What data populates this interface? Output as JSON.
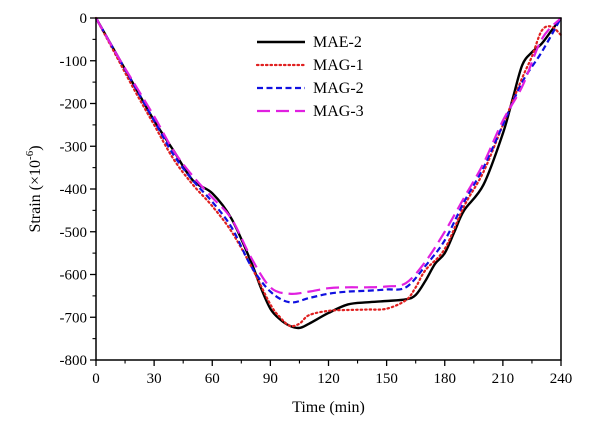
{
  "chart_data": {
    "type": "line",
    "xlabel": "Time (min)",
    "ylabel": {
      "prefix": "Strain (×10",
      "exp": "-6",
      "suffix": ")"
    },
    "xlim": [
      0,
      240
    ],
    "ylim": [
      -800,
      0
    ],
    "xticks": [
      0,
      30,
      60,
      90,
      120,
      150,
      180,
      210,
      240
    ],
    "yticks": [
      0,
      -100,
      -200,
      -300,
      -400,
      -500,
      -600,
      -700,
      -800
    ],
    "grid": false,
    "legend_position": "top-center",
    "series": [
      {
        "name": "MAE-2",
        "color": "#000000",
        "dash": "solid",
        "points": [
          [
            0,
            0
          ],
          [
            10,
            -80
          ],
          [
            20,
            -160
          ],
          [
            30,
            -240
          ],
          [
            40,
            -310
          ],
          [
            50,
            -380
          ],
          [
            60,
            -410
          ],
          [
            70,
            -470
          ],
          [
            80,
            -570
          ],
          [
            85,
            -630
          ],
          [
            90,
            -680
          ],
          [
            95,
            -705
          ],
          [
            100,
            -720
          ],
          [
            105,
            -725
          ],
          [
            110,
            -715
          ],
          [
            120,
            -690
          ],
          [
            130,
            -670
          ],
          [
            140,
            -665
          ],
          [
            150,
            -662
          ],
          [
            160,
            -658
          ],
          [
            165,
            -648
          ],
          [
            170,
            -615
          ],
          [
            175,
            -575
          ],
          [
            180,
            -550
          ],
          [
            185,
            -500
          ],
          [
            190,
            -450
          ],
          [
            200,
            -390
          ],
          [
            210,
            -270
          ],
          [
            215,
            -190
          ],
          [
            220,
            -110
          ],
          [
            225,
            -80
          ],
          [
            230,
            -60
          ],
          [
            235,
            -30
          ],
          [
            240,
            0
          ]
        ]
      },
      {
        "name": "MAG-1",
        "color": "#e02020",
        "dash": "dotted",
        "points": [
          [
            0,
            0
          ],
          [
            10,
            -85
          ],
          [
            20,
            -170
          ],
          [
            30,
            -250
          ],
          [
            40,
            -330
          ],
          [
            50,
            -390
          ],
          [
            60,
            -440
          ],
          [
            70,
            -500
          ],
          [
            80,
            -580
          ],
          [
            90,
            -670
          ],
          [
            95,
            -700
          ],
          [
            100,
            -720
          ],
          [
            105,
            -715
          ],
          [
            110,
            -695
          ],
          [
            120,
            -685
          ],
          [
            130,
            -683
          ],
          [
            140,
            -682
          ],
          [
            150,
            -680
          ],
          [
            160,
            -660
          ],
          [
            165,
            -630
          ],
          [
            170,
            -590
          ],
          [
            180,
            -540
          ],
          [
            190,
            -440
          ],
          [
            200,
            -360
          ],
          [
            210,
            -250
          ],
          [
            220,
            -140
          ],
          [
            225,
            -90
          ],
          [
            230,
            -30
          ],
          [
            235,
            -20
          ],
          [
            240,
            -40
          ]
        ]
      },
      {
        "name": "MAG-2",
        "color": "#1010e0",
        "dash": "short-dash",
        "points": [
          [
            0,
            0
          ],
          [
            10,
            -80
          ],
          [
            20,
            -160
          ],
          [
            30,
            -240
          ],
          [
            40,
            -320
          ],
          [
            50,
            -380
          ],
          [
            60,
            -430
          ],
          [
            70,
            -490
          ],
          [
            80,
            -580
          ],
          [
            90,
            -640
          ],
          [
            100,
            -665
          ],
          [
            110,
            -655
          ],
          [
            120,
            -645
          ],
          [
            130,
            -640
          ],
          [
            140,
            -638
          ],
          [
            150,
            -635
          ],
          [
            160,
            -630
          ],
          [
            170,
            -580
          ],
          [
            180,
            -520
          ],
          [
            190,
            -430
          ],
          [
            200,
            -350
          ],
          [
            210,
            -250
          ],
          [
            220,
            -150
          ],
          [
            230,
            -80
          ],
          [
            240,
            0
          ]
        ]
      },
      {
        "name": "MAG-3",
        "color": "#e020e0",
        "dash": "long-dash",
        "points": [
          [
            0,
            0
          ],
          [
            10,
            -80
          ],
          [
            20,
            -155
          ],
          [
            30,
            -230
          ],
          [
            40,
            -310
          ],
          [
            50,
            -370
          ],
          [
            60,
            -420
          ],
          [
            70,
            -470
          ],
          [
            80,
            -560
          ],
          [
            90,
            -630
          ],
          [
            100,
            -645
          ],
          [
            110,
            -640
          ],
          [
            120,
            -632
          ],
          [
            130,
            -630
          ],
          [
            140,
            -630
          ],
          [
            150,
            -628
          ],
          [
            160,
            -620
          ],
          [
            170,
            -570
          ],
          [
            180,
            -500
          ],
          [
            190,
            -420
          ],
          [
            200,
            -340
          ],
          [
            210,
            -240
          ],
          [
            220,
            -160
          ],
          [
            230,
            -50
          ],
          [
            240,
            0
          ]
        ]
      }
    ]
  }
}
